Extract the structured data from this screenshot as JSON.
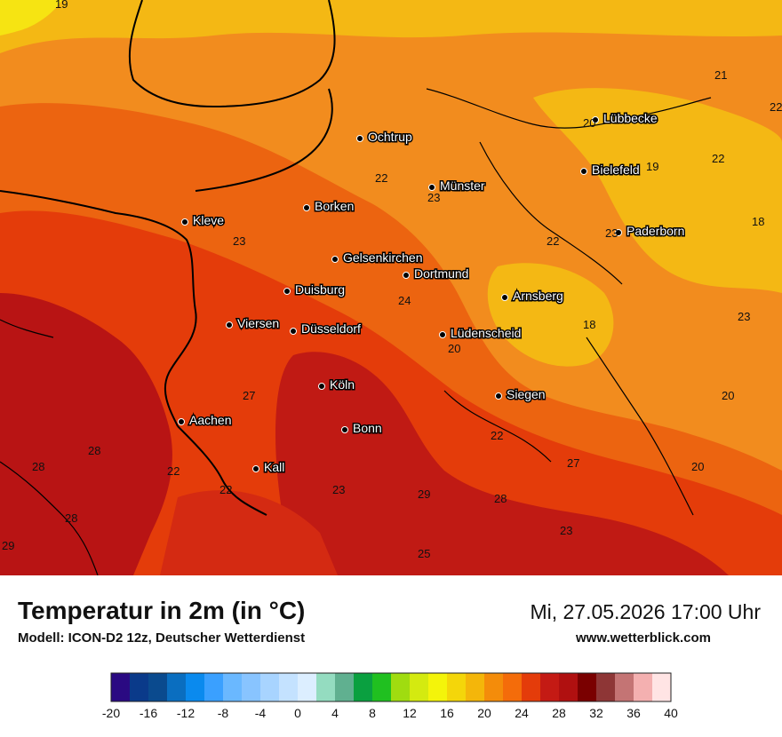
{
  "header": {
    "title": "Temperatur in 2m (in °C)",
    "model": "Modell: ICON-D2 12z, Deutscher Wetterdienst",
    "datetime": "Mi, 27.05.2026 17:00 Uhr",
    "website": "www.wetterblick.com"
  },
  "cities": [
    {
      "name": "Ochtrup"
    },
    {
      "name": "Lübbecke"
    },
    {
      "name": "Bielefeld"
    },
    {
      "name": "Münster"
    },
    {
      "name": "Borken"
    },
    {
      "name": "Kleve"
    },
    {
      "name": "Paderborn"
    },
    {
      "name": "Gelsenkirchen"
    },
    {
      "name": "Dortmund"
    },
    {
      "name": "Duisburg"
    },
    {
      "name": "Arnsberg"
    },
    {
      "name": "Viersen"
    },
    {
      "name": "Düsseldorf"
    },
    {
      "name": "Lüdenscheid"
    },
    {
      "name": "Köln"
    },
    {
      "name": "Siegen"
    },
    {
      "name": "Aachen"
    },
    {
      "name": "Bonn"
    },
    {
      "name": "Kall"
    }
  ],
  "temperature_labels": [
    "19",
    "21",
    "22",
    "20",
    "19",
    "22",
    "22",
    "23",
    "18",
    "23",
    "22",
    "23",
    "24",
    "23",
    "18",
    "20",
    "27",
    "20",
    "22",
    "28",
    "27",
    "20",
    "22",
    "22",
    "23",
    "29",
    "28",
    "28",
    "23",
    "29",
    "25"
  ],
  "legend": {
    "tick_labels": [
      "-20",
      "-16",
      "-12",
      "-8",
      "-4",
      "0",
      "4",
      "8",
      "12",
      "16",
      "20",
      "24",
      "28",
      "32",
      "36",
      "40"
    ],
    "colors": [
      "#2a0a82",
      "#0a3a8a",
      "#0a4a8e",
      "#0a6ec0",
      "#0a8aee",
      "#3aa0ff",
      "#6ab8ff",
      "#88c4ff",
      "#a8d4ff",
      "#c4e2ff",
      "#dceeff",
      "#94dcc0",
      "#60b090",
      "#0aa040",
      "#20c020",
      "#a0dc10",
      "#d4ea10",
      "#f4f40a",
      "#f4d60a",
      "#f4b60a",
      "#f48c0a",
      "#f46c0a",
      "#e43c0a",
      "#c41a14",
      "#b01010",
      "#7a0000",
      "#8e3636",
      "#c47474",
      "#f4b0b0",
      "#ffe4e4"
    ]
  }
}
